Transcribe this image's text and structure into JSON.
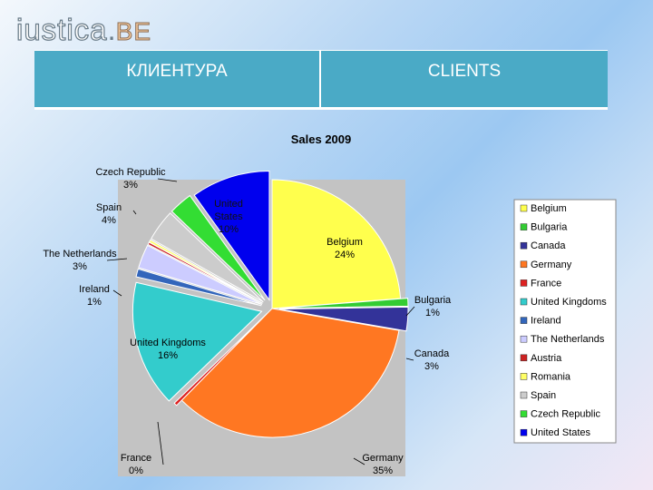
{
  "logo": {
    "main": "iustica",
    "dot": ".",
    "suffix": "BE"
  },
  "header": {
    "col1": "КЛИЕНТУРА",
    "col2": "CLIENTS"
  },
  "chart_data": {
    "type": "pie",
    "title": "Sales 2009",
    "legend_position": "right",
    "slices": [
      {
        "name": "Belgium",
        "value": 24,
        "label": "24%",
        "color": "#ffff4d"
      },
      {
        "name": "Bulgaria",
        "value": 1,
        "label": "1%",
        "color": "#33cc33"
      },
      {
        "name": "Canada",
        "value": 3,
        "label": "3%",
        "color": "#333399"
      },
      {
        "name": "Germany",
        "value": 35,
        "label": "35%",
        "color": "#ff7722"
      },
      {
        "name": "France",
        "value": 0.4,
        "label": "0%",
        "color": "#dd2222"
      },
      {
        "name": "United Kingdoms",
        "value": 16,
        "label": "16%",
        "color": "#33cccc"
      },
      {
        "name": "Ireland",
        "value": 1,
        "label": "1%",
        "color": "#3366bb"
      },
      {
        "name": "The Netherlands",
        "value": 3,
        "label": "3%",
        "color": "#ccccff"
      },
      {
        "name": "Austria",
        "value": 0.3,
        "label": "",
        "color": "#cc2222"
      },
      {
        "name": "Romania",
        "value": 0.3,
        "label": "",
        "color": "#ffff66"
      },
      {
        "name": "Spain",
        "value": 4,
        "label": "4%",
        "color": "#cccccc"
      },
      {
        "name": "Czech Republic",
        "value": 3,
        "label": "3%",
        "color": "#33dd33"
      },
      {
        "name": "United States",
        "value": 10,
        "label": "10%",
        "color": "#0000ee"
      }
    ],
    "legend": [
      "Belgium",
      "Bulgaria",
      "Canada",
      "Germany",
      "France",
      "United Kingdoms",
      "Ireland",
      "The Netherlands",
      "Austria",
      "Romania",
      "Spain",
      "Czech Republic",
      "United States"
    ]
  }
}
